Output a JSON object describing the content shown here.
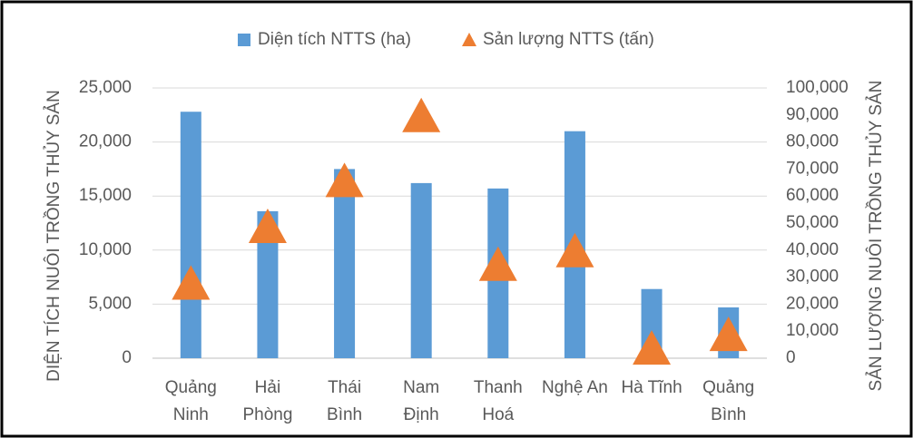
{
  "chart_data": {
    "type": "bar_triangle_combo",
    "categories": [
      [
        "Quảng",
        "Ninh"
      ],
      [
        "Hải",
        "Phòng"
      ],
      [
        "Thái",
        "Bình"
      ],
      [
        "Nam",
        "Định"
      ],
      [
        "Thanh",
        "Hoá"
      ],
      [
        "Nghệ An"
      ],
      [
        "Hà Tĩnh"
      ],
      [
        "Quảng",
        "Bình"
      ]
    ],
    "series": [
      {
        "name": "Diện tích NTTS (ha)",
        "color": "#5b9bd5",
        "values": [
          22800,
          13600,
          17500,
          16200,
          15700,
          21000,
          6400,
          4700
        ]
      },
      {
        "name": "Sản lượng NTTS (tấn)",
        "color": "#ed7d31",
        "axis": "y2",
        "values": [
          28000,
          49000,
          66000,
          90000,
          35000,
          40000,
          4000,
          9000
        ]
      }
    ],
    "ylabel": "DIỆN TÍCH NUÔI TRỒNG THỦY SẢN",
    "y2label": "SẢN LƯỢNG NUÔI TRỒNG THỦY SẢN",
    "ylim": [
      0,
      25000
    ],
    "yticks": [
      0,
      {
        "value": 5000,
        "label": "5,000"
      },
      {
        "value": 10000,
        "label": "10,000"
      },
      {
        "value": 15000,
        "label": "15,000"
      },
      {
        "value": 20000,
        "label": "20,000"
      },
      {
        "value": 25000,
        "label": "25,000"
      }
    ],
    "y2lim": [
      0,
      100000
    ],
    "y2ticks": [
      0,
      {
        "value": 10000,
        "label": "10,000"
      },
      {
        "value": 20000,
        "label": "20,000"
      },
      {
        "value": 30000,
        "label": "30,000"
      },
      {
        "value": 40000,
        "label": "40,000"
      },
      {
        "value": 50000,
        "label": "50,000"
      },
      {
        "value": 60000,
        "label": "60,000"
      },
      {
        "value": 70000,
        "label": "70,000"
      },
      {
        "value": 80000,
        "label": "80,000"
      },
      {
        "value": 90000,
        "label": "90,000"
      },
      {
        "value": 100000,
        "label": "100,000"
      }
    ],
    "grid": true,
    "legend": "top"
  }
}
